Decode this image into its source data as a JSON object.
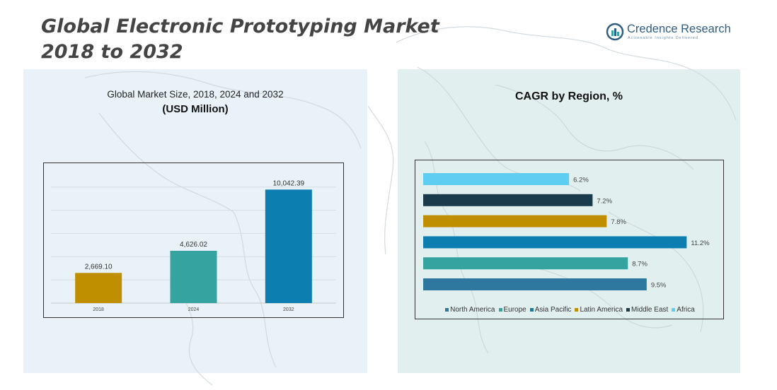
{
  "header": {
    "title_line1": "Global Electronic Prototyping Market",
    "title_line2": "2018 to 2032"
  },
  "logo": {
    "name": "Credence Research",
    "tagline": "Actionable Insights Delivered"
  },
  "chart_data": [
    {
      "type": "bar",
      "title": "Global Market Size, 2018, 2024 and 2032",
      "subtitle": "(USD Million)",
      "categories": [
        "2018",
        "2024",
        "2032"
      ],
      "values": [
        2669.1,
        4626.02,
        10042.39
      ],
      "value_labels": [
        "2,669.10",
        "4,626.02",
        "10,042.39"
      ],
      "colors": [
        "#bf8f00",
        "#35a39f",
        "#0c7fb0"
      ],
      "ylim": [
        0,
        11500
      ],
      "grid": true
    },
    {
      "type": "bar",
      "orientation": "horizontal",
      "title": "CAGR by Region, %",
      "categories": [
        "Africa",
        "Middle East",
        "Latin America",
        "Asia Pacific",
        "Europe",
        "North America"
      ],
      "values": [
        6.2,
        7.2,
        7.8,
        11.2,
        8.7,
        9.5
      ],
      "value_labels": [
        "6.2%",
        "7.2%",
        "7.8%",
        "11.2%",
        "8.7%",
        "9.5%"
      ],
      "colors": [
        "#5ecdf2",
        "#1a3b4b",
        "#bf8f00",
        "#0c7fb0",
        "#35a39f",
        "#2e78a0"
      ],
      "xlim": [
        0,
        11.7
      ],
      "legend": {
        "position": "bottom",
        "entries": [
          "North America",
          "Europe",
          "Asia Pacific",
          "Latin America",
          "Middle East",
          "Africa"
        ],
        "colors": [
          "#2e78a0",
          "#35a39f",
          "#0c7fb0",
          "#bf8f00",
          "#1a3b4b",
          "#5ecdf2"
        ]
      }
    }
  ]
}
